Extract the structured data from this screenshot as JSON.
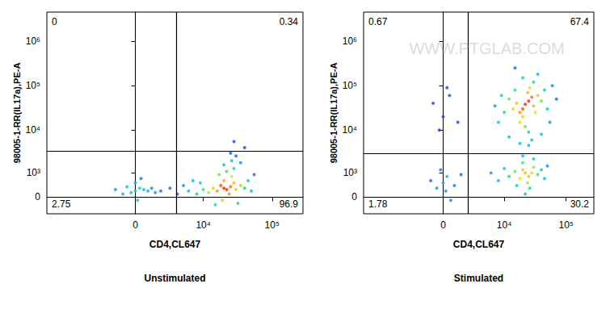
{
  "chart_data": [
    {
      "type": "scatter",
      "title": "Unstimulated",
      "x_label": "CD4,CL647",
      "y_label": "98005-1-RR(IL17a),PE-A",
      "xlim": [
        -20000,
        280000
      ],
      "ylim": [
        -600,
        4500000
      ],
      "xticks": [
        0,
        {
          "value": 10000,
          "label": "10⁴"
        },
        {
          "value": 100000,
          "label": "10⁵"
        }
      ],
      "yticks": [
        0,
        {
          "value": 1000,
          "label": "10³"
        },
        {
          "value": 10000,
          "label": "10⁴"
        },
        {
          "value": 100000,
          "label": "10⁵"
        },
        {
          "value": 1000000,
          "label": "10⁶"
        }
      ],
      "grid": false,
      "gates": {
        "x": 3800,
        "y": 3300
      },
      "quadrant_percentages": {
        "upper_left": 0,
        "upper_right": 0.34,
        "lower_left": 2.75,
        "lower_right": 96.9
      },
      "density_range": [
        0,
        1
      ],
      "points": [
        [
          20000,
          300,
          1
        ],
        [
          22000,
          250,
          1
        ],
        [
          18000,
          400,
          0.95
        ],
        [
          25000,
          350,
          0.9
        ],
        [
          16000,
          200,
          0.85
        ],
        [
          28000,
          500,
          0.8
        ],
        [
          20000,
          600,
          0.8
        ],
        [
          24000,
          100,
          0.85
        ],
        [
          14000,
          300,
          0.7
        ],
        [
          30000,
          250,
          0.7
        ],
        [
          19000,
          -100,
          0.7
        ],
        [
          26000,
          800,
          0.6
        ],
        [
          12000,
          150,
          0.55
        ],
        [
          35000,
          400,
          0.55
        ],
        [
          17000,
          900,
          0.5
        ],
        [
          22000,
          1100,
          0.45
        ],
        [
          10000,
          250,
          0.45
        ],
        [
          40000,
          300,
          0.4
        ],
        [
          28000,
          1300,
          0.35
        ],
        [
          9000,
          500,
          0.35
        ],
        [
          32000,
          -200,
          0.4
        ],
        [
          15000,
          -250,
          0.4
        ],
        [
          45000,
          600,
          0.25
        ],
        [
          8000,
          100,
          0.3
        ],
        [
          20000,
          1600,
          0.25
        ],
        [
          26000,
          2000,
          0.2
        ],
        [
          50000,
          200,
          0.2
        ],
        [
          7000,
          600,
          0.2
        ],
        [
          35000,
          1800,
          0.15
        ],
        [
          30000,
          2600,
          0.1
        ],
        [
          25000,
          3000,
          0.08
        ],
        [
          40000,
          4000,
          0.05
        ],
        [
          28000,
          5500,
          0.05
        ],
        [
          55000,
          900,
          0.1
        ],
        [
          6000,
          200,
          0.2
        ],
        [
          5000,
          400,
          0.15
        ],
        [
          4000,
          100,
          0.1
        ],
        [
          3000,
          300,
          0.1
        ],
        [
          2000,
          200,
          0.1
        ],
        [
          0,
          200,
          0.3
        ],
        [
          300,
          300,
          0.35
        ],
        [
          -300,
          150,
          0.3
        ],
        [
          600,
          250,
          0.3
        ],
        [
          -600,
          350,
          0.25
        ],
        [
          150,
          -100,
          0.25
        ],
        [
          900,
          200,
          0.2
        ],
        [
          -900,
          100,
          0.2
        ],
        [
          0,
          500,
          0.2
        ],
        [
          1200,
          300,
          0.15
        ],
        [
          -1500,
          250,
          0.15
        ],
        [
          1500,
          150,
          0.15
        ],
        [
          400,
          700,
          0.12
        ]
      ]
    },
    {
      "type": "scatter",
      "title": "Stimulated",
      "x_label": "CD4,CL647",
      "y_label": "98005-1-RR(IL17a),PE-A",
      "watermark": "WWW.PTGLAB.COM",
      "xlim": [
        -20000,
        280000
      ],
      "ylim": [
        -600,
        4500000
      ],
      "xticks": [
        0,
        {
          "value": 10000,
          "label": "10⁴"
        },
        {
          "value": 100000,
          "label": "10⁵"
        }
      ],
      "yticks": [
        0,
        {
          "value": 1000,
          "label": "10³"
        },
        {
          "value": 10000,
          "label": "10⁴"
        },
        {
          "value": 100000,
          "label": "10⁵"
        },
        {
          "value": 1000000,
          "label": "10⁶"
        }
      ],
      "grid": false,
      "gates": {
        "x": 2240,
        "y": 3000
      },
      "quadrant_percentages": {
        "upper_left": 0.67,
        "upper_right": 67.4,
        "lower_left": 1.78,
        "lower_right": 30.2
      },
      "density_range": [
        0,
        1
      ],
      "points": [
        [
          22000,
          38000,
          1
        ],
        [
          25000,
          45000,
          1
        ],
        [
          20000,
          30000,
          0.95
        ],
        [
          28000,
          55000,
          0.9
        ],
        [
          18000,
          25000,
          0.85
        ],
        [
          24000,
          70000,
          0.8
        ],
        [
          30000,
          35000,
          0.8
        ],
        [
          16000,
          40000,
          0.75
        ],
        [
          20000,
          20000,
          0.7
        ],
        [
          35000,
          60000,
          0.7
        ],
        [
          14000,
          30000,
          0.65
        ],
        [
          26000,
          90000,
          0.6
        ],
        [
          18000,
          15000,
          0.6
        ],
        [
          32000,
          25000,
          0.6
        ],
        [
          12000,
          50000,
          0.5
        ],
        [
          40000,
          45000,
          0.5
        ],
        [
          22000,
          12000,
          0.5
        ],
        [
          15000,
          80000,
          0.45
        ],
        [
          30000,
          120000,
          0.4
        ],
        [
          45000,
          80000,
          0.35
        ],
        [
          10000,
          25000,
          0.4
        ],
        [
          25000,
          9000,
          0.4
        ],
        [
          20000,
          150000,
          0.3
        ],
        [
          50000,
          30000,
          0.3
        ],
        [
          9000,
          60000,
          0.3
        ],
        [
          35000,
          180000,
          0.2
        ],
        [
          60000,
          100000,
          0.15
        ],
        [
          8000,
          15000,
          0.25
        ],
        [
          28000,
          6000,
          0.3
        ],
        [
          18000,
          5000,
          0.25
        ],
        [
          40000,
          8000,
          0.25
        ],
        [
          12000,
          7000,
          0.25
        ],
        [
          25000,
          4500,
          0.2
        ],
        [
          55000,
          15000,
          0.15
        ],
        [
          15000,
          250000,
          0.1
        ],
        [
          70000,
          50000,
          0.1
        ],
        [
          7000,
          35000,
          0.15
        ],
        [
          22000,
          1000,
          0.8
        ],
        [
          25000,
          800,
          0.75
        ],
        [
          20000,
          1200,
          0.7
        ],
        [
          28000,
          1000,
          0.65
        ],
        [
          18000,
          700,
          0.6
        ],
        [
          30000,
          1400,
          0.55
        ],
        [
          15000,
          1100,
          0.5
        ],
        [
          24000,
          500,
          0.55
        ],
        [
          35000,
          900,
          0.45
        ],
        [
          20000,
          1800,
          0.45
        ],
        [
          12000,
          800,
          0.4
        ],
        [
          26000,
          300,
          0.4
        ],
        [
          40000,
          1200,
          0.35
        ],
        [
          16000,
          400,
          0.35
        ],
        [
          30000,
          2200,
          0.3
        ],
        [
          10000,
          1300,
          0.3
        ],
        [
          45000,
          700,
          0.25
        ],
        [
          22000,
          100,
          0.25
        ],
        [
          8000,
          600,
          0.2
        ],
        [
          50000,
          1500,
          0.15
        ],
        [
          6000,
          1000,
          0.15
        ],
        [
          20000,
          2600,
          0.2
        ],
        [
          0,
          500,
          0.2
        ],
        [
          300,
          800,
          0.2
        ],
        [
          -500,
          300,
          0.15
        ],
        [
          600,
          -100,
          0.15
        ],
        [
          -200,
          1200,
          0.12
        ],
        [
          900,
          400,
          0.12
        ],
        [
          -1000,
          600,
          0.1
        ],
        [
          1500,
          900,
          0.1
        ],
        [
          200,
          200,
          0.15
        ],
        [
          0,
          20000,
          0.05
        ],
        [
          500,
          60000,
          0.05
        ],
        [
          -800,
          40000,
          0.05
        ],
        [
          1200,
          15000,
          0.05
        ],
        [
          300,
          90000,
          0.05
        ],
        [
          -300,
          10000,
          0.05
        ]
      ]
    }
  ]
}
